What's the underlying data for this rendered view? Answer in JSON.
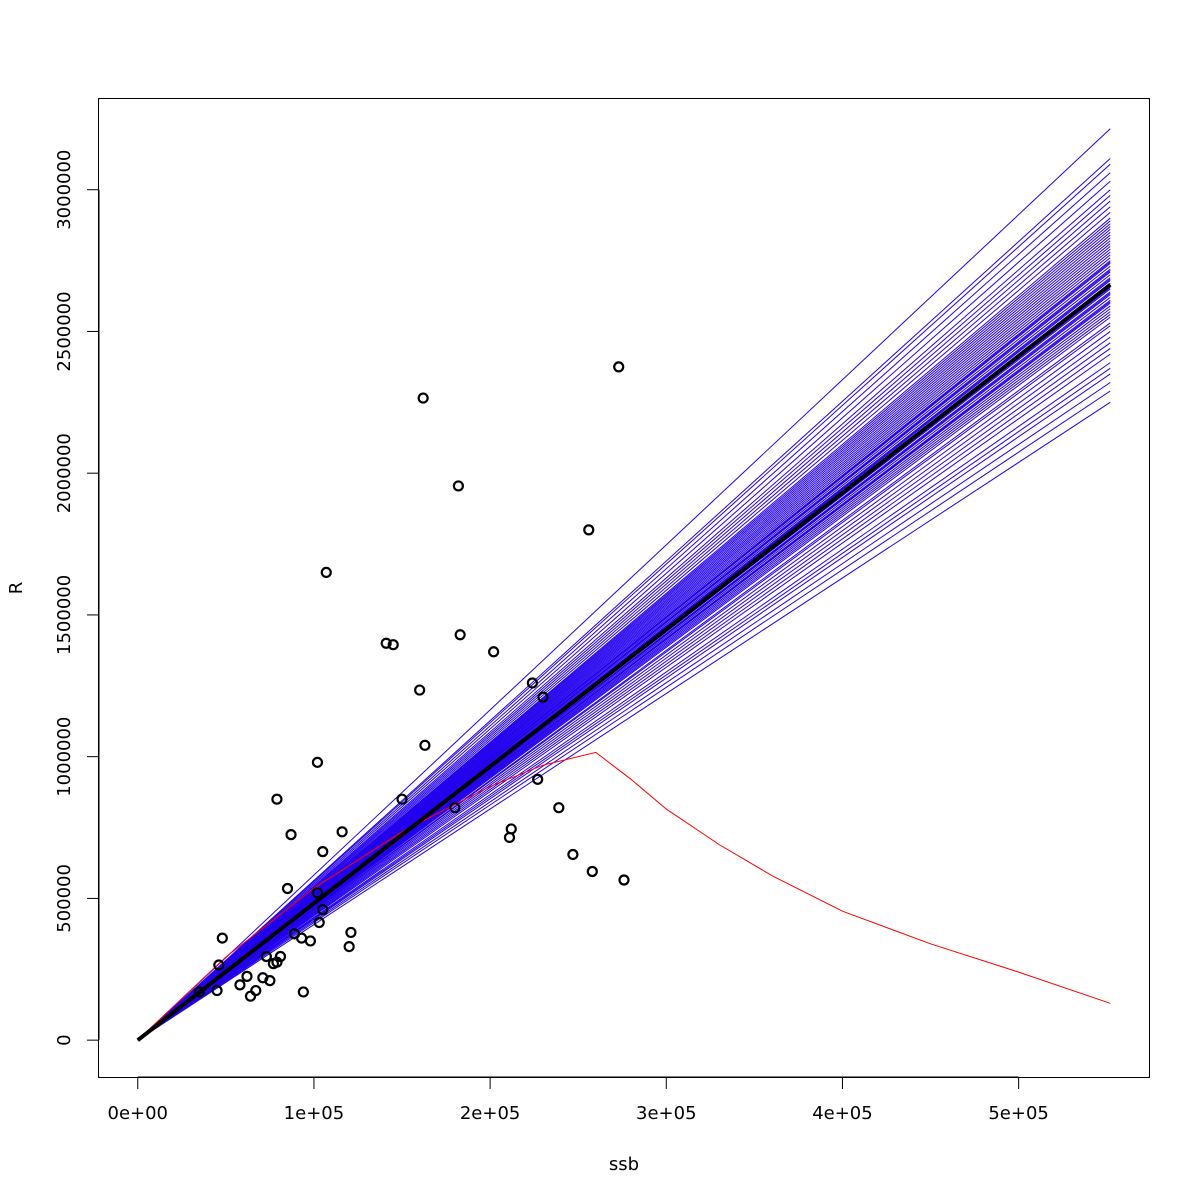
{
  "chart_data": {
    "type": "scatter",
    "title": "",
    "xlabel": "ssb",
    "ylabel": "R",
    "xlim": [
      -22000,
      574000
    ],
    "ylim": [
      -130000,
      3320000
    ],
    "x_ticks": [
      0,
      100000,
      200000,
      300000,
      400000,
      500000
    ],
    "x_tick_labels": [
      "0e+00",
      "1e+05",
      "2e+05",
      "3e+05",
      "4e+05",
      "5e+05"
    ],
    "y_ticks": [
      0,
      500000,
      1000000,
      1500000,
      2000000,
      2500000,
      3000000
    ],
    "y_tick_labels": [
      "0",
      "500000",
      "1000000",
      "1500000",
      "2000000",
      "2500000",
      "3000000"
    ],
    "grid": false,
    "legend": "none",
    "colors": {
      "points": "#000000",
      "fit": "#000000",
      "bootstrap": "#2200ee",
      "alt_curve": "#ff0000"
    },
    "points": [
      [
        35000,
        170000
      ],
      [
        45000,
        175000
      ],
      [
        46000,
        265000
      ],
      [
        48000,
        360000
      ],
      [
        58000,
        195000
      ],
      [
        62000,
        225000
      ],
      [
        64000,
        155000
      ],
      [
        67000,
        175000
      ],
      [
        71000,
        220000
      ],
      [
        73000,
        295000
      ],
      [
        75000,
        210000
      ],
      [
        77000,
        270000
      ],
      [
        79000,
        275000
      ],
      [
        79000,
        850000
      ],
      [
        81000,
        295000
      ],
      [
        85000,
        535000
      ],
      [
        87000,
        725000
      ],
      [
        89000,
        375000
      ],
      [
        93000,
        360000
      ],
      [
        94000,
        170000
      ],
      [
        98000,
        350000
      ],
      [
        102000,
        520000
      ],
      [
        102000,
        980000
      ],
      [
        103000,
        415000
      ],
      [
        105000,
        460000
      ],
      [
        105000,
        665000
      ],
      [
        107000,
        1650000
      ],
      [
        116000,
        735000
      ],
      [
        120000,
        330000
      ],
      [
        121000,
        380000
      ],
      [
        141000,
        1400000
      ],
      [
        145000,
        1395000
      ],
      [
        150000,
        850000
      ],
      [
        160000,
        1235000
      ],
      [
        162000,
        2265000
      ],
      [
        163000,
        1040000
      ],
      [
        180000,
        820000
      ],
      [
        182000,
        1955000
      ],
      [
        183000,
        1430000
      ],
      [
        202000,
        1370000
      ],
      [
        211000,
        715000
      ],
      [
        212000,
        745000
      ],
      [
        224000,
        1260000
      ],
      [
        227000,
        920000
      ],
      [
        230000,
        1210000
      ],
      [
        239000,
        820000
      ],
      [
        247000,
        655000
      ],
      [
        256000,
        1800000
      ],
      [
        258000,
        595000
      ],
      [
        273000,
        2375000
      ],
      [
        276000,
        565000
      ]
    ],
    "fit_line": {
      "x": [
        0,
        552000
      ],
      "y": [
        0,
        2665000
      ]
    },
    "bootstrap_lines": {
      "x_end": 552000,
      "y_end": [
        2250000,
        2290000,
        2320000,
        2350000,
        2370000,
        2390000,
        2420000,
        2440000,
        2460000,
        2480000,
        2500000,
        2520000,
        2530000,
        2550000,
        2560000,
        2570000,
        2580000,
        2590000,
        2600000,
        2605000,
        2610000,
        2620000,
        2630000,
        2635000,
        2640000,
        2650000,
        2655000,
        2660000,
        2670000,
        2680000,
        2685000,
        2690000,
        2700000,
        2710000,
        2715000,
        2720000,
        2730000,
        2740000,
        2745000,
        2750000,
        2760000,
        2770000,
        2780000,
        2790000,
        2800000,
        2810000,
        2820000,
        2830000,
        2840000,
        2850000,
        2860000,
        2870000,
        2880000,
        2890000,
        2900000,
        2920000,
        2940000,
        2960000,
        2980000,
        3000000,
        3030000,
        3060000,
        3090000,
        3110000,
        3215000
      ]
    },
    "alt_curve": {
      "x": [
        0,
        50000,
        100000,
        150000,
        200000,
        230000,
        260000,
        280000,
        300000,
        330000,
        360000,
        400000,
        450000,
        500000,
        552000
      ],
      "y": [
        0,
        293000,
        536000,
        735000,
        895000,
        970000,
        1015000,
        920000,
        815000,
        690000,
        580000,
        455000,
        340000,
        240000,
        130000
      ]
    }
  }
}
